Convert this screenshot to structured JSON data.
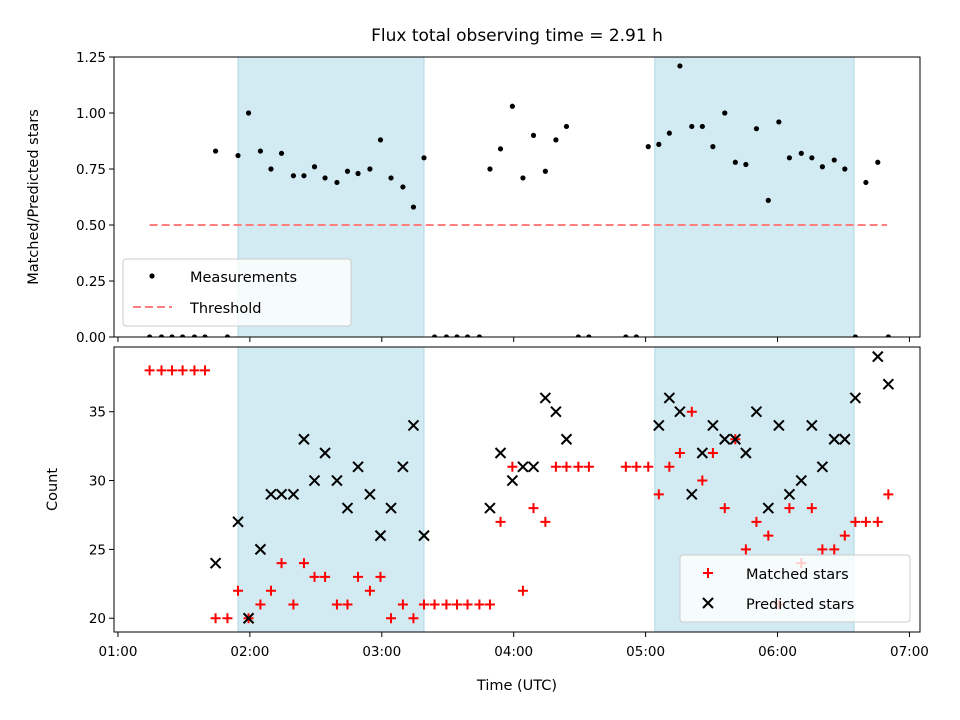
{
  "title": "Flux total observing time = 2.91 h",
  "colors": {
    "shade": "#add8e6",
    "measurement": "#000000",
    "threshold": "#ff7f7f",
    "matched": "#ff0000",
    "predicted": "#000000"
  },
  "chart_data": [
    {
      "type": "scatter",
      "ylabel": "Matched/Predicted stars",
      "xlim": [
        0.97,
        7.08
      ],
      "ylim": [
        0,
        1.25
      ],
      "yticks": [
        0.0,
        0.25,
        0.5,
        0.75,
        1.0,
        1.25
      ],
      "ytick_labels": [
        "0.00",
        "0.25",
        "0.50",
        "0.75",
        "1.00",
        "1.25"
      ],
      "shaded_intervals": [
        [
          1.91,
          3.32
        ],
        [
          5.07,
          6.58
        ]
      ],
      "legend": {
        "placement": "lower-left",
        "entries": [
          "Measurements",
          "Threshold"
        ]
      },
      "threshold": {
        "name": "Threshold",
        "y": 0.5,
        "x_range": [
          1.24,
          6.83
        ]
      },
      "series": [
        {
          "name": "Measurements",
          "x": [
            1.24,
            1.33,
            1.41,
            1.49,
            1.58,
            1.66,
            1.74,
            1.83,
            1.91,
            1.99,
            2.08,
            2.16,
            2.24,
            2.33,
            2.41,
            2.49,
            2.57,
            2.66,
            2.74,
            2.82,
            2.91,
            2.99,
            3.07,
            3.16,
            3.24,
            3.32,
            3.4,
            3.49,
            3.57,
            3.65,
            3.74,
            3.82,
            3.9,
            3.99,
            4.07,
            4.15,
            4.24,
            4.32,
            4.4,
            4.49,
            4.57,
            4.85,
            4.93,
            5.02,
            5.1,
            5.18,
            5.26,
            5.35,
            5.43,
            5.51,
            5.6,
            5.68,
            5.76,
            5.84,
            5.93,
            6.01,
            6.09,
            6.18,
            6.26,
            6.34,
            6.43,
            6.51,
            6.59,
            6.67,
            6.76,
            6.84
          ],
          "values": [
            0.0,
            0.0,
            0.0,
            0.0,
            0.0,
            0.0,
            0.83,
            0.0,
            0.81,
            1.0,
            0.83,
            0.75,
            0.82,
            0.72,
            0.72,
            0.76,
            0.71,
            0.69,
            0.74,
            0.73,
            0.75,
            0.88,
            0.71,
            0.67,
            0.58,
            0.8,
            0.0,
            0.0,
            0.0,
            0.0,
            0.0,
            0.75,
            0.84,
            1.03,
            0.71,
            0.9,
            0.74,
            0.88,
            0.94,
            0.0,
            0.0,
            0.0,
            0.0,
            0.85,
            0.86,
            0.91,
            1.21,
            0.94,
            0.94,
            0.85,
            1.0,
            0.78,
            0.77,
            0.93,
            0.61,
            0.96,
            0.8,
            0.82,
            0.8,
            0.76,
            0.79,
            0.75,
            0.0,
            0.69,
            0.78,
            0.0
          ]
        }
      ]
    },
    {
      "type": "scatter",
      "xlabel": "Time (UTC)",
      "ylabel": "Count",
      "xlim": [
        0.97,
        7.08
      ],
      "ylim": [
        19,
        39.7
      ],
      "xticks": [
        1,
        2,
        3,
        4,
        5,
        6,
        7
      ],
      "xtick_labels": [
        "01:00",
        "02:00",
        "03:00",
        "04:00",
        "05:00",
        "06:00",
        "07:00"
      ],
      "yticks": [
        20,
        25,
        30,
        35
      ],
      "ytick_labels": [
        "20",
        "25",
        "30",
        "35"
      ],
      "shaded_intervals": [
        [
          1.91,
          3.32
        ],
        [
          5.07,
          6.58
        ]
      ],
      "legend": {
        "placement": "lower-right",
        "entries": [
          "Matched stars",
          "Predicted stars"
        ]
      },
      "series": [
        {
          "name": "Matched stars",
          "marker": "+",
          "x": [
            1.24,
            1.33,
            1.41,
            1.49,
            1.58,
            1.66,
            1.74,
            1.83,
            1.91,
            1.99,
            2.08,
            2.16,
            2.24,
            2.33,
            2.41,
            2.49,
            2.57,
            2.66,
            2.74,
            2.82,
            2.91,
            2.99,
            3.07,
            3.16,
            3.24,
            3.32,
            3.4,
            3.49,
            3.57,
            3.65,
            3.74,
            3.82,
            3.9,
            3.99,
            4.07,
            4.15,
            4.24,
            4.32,
            4.4,
            4.49,
            4.57,
            4.85,
            4.93,
            5.02,
            5.1,
            5.18,
            5.26,
            5.35,
            5.43,
            5.51,
            5.6,
            5.68,
            5.76,
            5.84,
            5.93,
            6.01,
            6.09,
            6.18,
            6.26,
            6.34,
            6.43,
            6.51,
            6.59,
            6.67,
            6.76,
            6.84
          ],
          "values": [
            38,
            38,
            38,
            38,
            38,
            38,
            20,
            20,
            22,
            20,
            21,
            22,
            24,
            21,
            24,
            23,
            23,
            21,
            21,
            23,
            22,
            23,
            20,
            21,
            20,
            21,
            21,
            21,
            21,
            21,
            21,
            21,
            27,
            31,
            22,
            28,
            27,
            31,
            31,
            31,
            31,
            31,
            31,
            31,
            29,
            31,
            32,
            35,
            30,
            32,
            28,
            33,
            25,
            27,
            26,
            21,
            28,
            24,
            28,
            25,
            25,
            26,
            27,
            27,
            27,
            29
          ]
        },
        {
          "name": "Predicted stars",
          "marker": "x",
          "x": [
            1.74,
            1.91,
            1.99,
            2.08,
            2.16,
            2.24,
            2.33,
            2.41,
            2.49,
            2.57,
            2.66,
            2.74,
            2.82,
            2.91,
            2.99,
            3.07,
            3.16,
            3.24,
            3.32,
            3.82,
            3.9,
            3.99,
            4.07,
            4.15,
            4.24,
            4.32,
            4.4,
            5.1,
            5.18,
            5.26,
            5.35,
            5.43,
            5.51,
            5.6,
            5.68,
            5.76,
            5.84,
            5.93,
            6.01,
            6.09,
            6.18,
            6.26,
            6.34,
            6.43,
            6.51,
            6.59,
            6.76,
            6.84
          ],
          "values": [
            24,
            27,
            20,
            25,
            29,
            29,
            29,
            33,
            30,
            32,
            30,
            28,
            31,
            29,
            26,
            28,
            31,
            34,
            26,
            28,
            32,
            30,
            31,
            31,
            36,
            35,
            33,
            34,
            36,
            35,
            29,
            32,
            34,
            33,
            33,
            32,
            35,
            28,
            34,
            29,
            30,
            34,
            31,
            33,
            33,
            36,
            39,
            37
          ]
        }
      ]
    }
  ]
}
